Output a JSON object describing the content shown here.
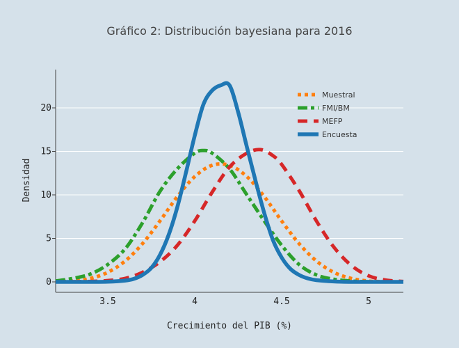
{
  "chart_data": {
    "type": "line",
    "title": "Gráfico 2: Distribución bayesiana para 2016",
    "xlabel": "Crecimiento del PIB (%)",
    "ylabel": "Densidad",
    "xlim": [
      3.2,
      5.2
    ],
    "ylim": [
      -1.2,
      24.4
    ],
    "xticks": [
      3.5,
      4,
      4.5,
      5
    ],
    "xtick_labels": [
      "3.5",
      "4",
      "4.5",
      "5"
    ],
    "yticks": [
      0,
      5,
      10,
      15,
      20
    ],
    "ytick_labels": [
      "0",
      "5",
      "10",
      "15",
      "20"
    ],
    "grid": "horizontal",
    "legend_position": "top-right",
    "series": [
      {
        "name": "Muestral",
        "color": "#ff7f0e",
        "dash": "dotted",
        "x": [
          3.2,
          3.3,
          3.4,
          3.5,
          3.6,
          3.7,
          3.8,
          3.9,
          4.0,
          4.1,
          4.2,
          4.3,
          4.4,
          4.5,
          4.6,
          4.7,
          4.8,
          4.9,
          5.0,
          5.1,
          5.2
        ],
        "y": [
          0.02,
          0.1,
          0.4,
          1.1,
          2.4,
          4.4,
          7.0,
          9.8,
          12.1,
          13.4,
          13.4,
          12.1,
          9.8,
          7.0,
          4.4,
          2.4,
          1.1,
          0.4,
          0.1,
          0.02,
          0.0
        ]
      },
      {
        "name": "FMI/BM",
        "color": "#2ca02c",
        "dash": "dashdot",
        "x": [
          3.2,
          3.3,
          3.4,
          3.5,
          3.6,
          3.7,
          3.8,
          3.9,
          4.0,
          4.05,
          4.1,
          4.2,
          4.3,
          4.4,
          4.5,
          4.6,
          4.7,
          4.8,
          4.9,
          5.0,
          5.2
        ],
        "y": [
          0.1,
          0.4,
          0.9,
          2.0,
          3.8,
          6.8,
          10.4,
          13.0,
          14.8,
          15.1,
          14.8,
          13.0,
          10.0,
          7.0,
          4.2,
          2.0,
          0.8,
          0.3,
          0.1,
          0.02,
          0.0
        ]
      },
      {
        "name": "MEFP",
        "color": "#d62728",
        "dash": "dashed",
        "x": [
          3.2,
          3.3,
          3.4,
          3.5,
          3.6,
          3.7,
          3.8,
          3.9,
          4.0,
          4.1,
          4.2,
          4.3,
          4.38,
          4.45,
          4.5,
          4.6,
          4.7,
          4.8,
          4.9,
          5.0,
          5.1,
          5.2
        ],
        "y": [
          0.0,
          0.02,
          0.05,
          0.15,
          0.4,
          1.1,
          2.3,
          4.2,
          7.0,
          10.3,
          13.2,
          14.8,
          15.2,
          14.5,
          13.5,
          10.5,
          7.0,
          4.0,
          1.9,
          0.7,
          0.2,
          0.05
        ]
      },
      {
        "name": "Encuesta",
        "color": "#1f77b4",
        "dash": "solid",
        "x": [
          3.2,
          3.3,
          3.4,
          3.5,
          3.6,
          3.65,
          3.7,
          3.75,
          3.8,
          3.85,
          3.9,
          3.95,
          4.0,
          4.05,
          4.1,
          4.15,
          4.2,
          4.25,
          4.3,
          4.35,
          4.4,
          4.45,
          4.5,
          4.55,
          4.6,
          4.65,
          4.7,
          4.8,
          4.9,
          5.0,
          5.2
        ],
        "y": [
          0.0,
          0.0,
          0.0,
          0.02,
          0.15,
          0.35,
          0.8,
          1.6,
          3.1,
          5.4,
          8.6,
          12.6,
          16.8,
          20.4,
          22.0,
          22.6,
          22.6,
          19.5,
          15.5,
          11.6,
          7.9,
          4.8,
          2.8,
          1.5,
          0.8,
          0.4,
          0.2,
          0.05,
          0.0,
          0.0,
          0.0
        ]
      }
    ]
  }
}
